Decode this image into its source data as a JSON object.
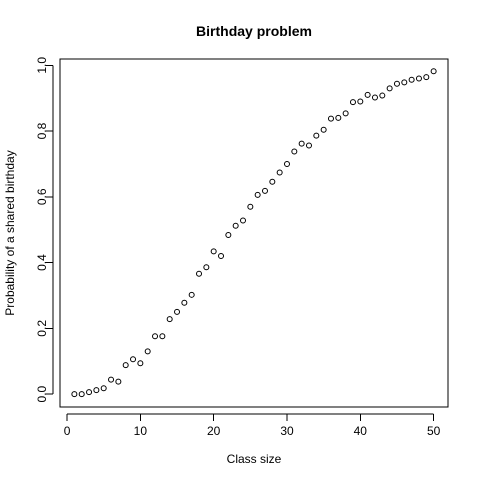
{
  "chart_data": {
    "type": "scatter",
    "title": "Birthday problem",
    "xlabel": "Class size",
    "ylabel": "Probability of a shared birthday",
    "xlim": [
      -0.96,
      51.96
    ],
    "ylim": [
      -0.0392,
      1.0192
    ],
    "xticks": [
      0,
      10,
      20,
      30,
      40,
      50
    ],
    "xtick_labels": [
      "0",
      "10",
      "20",
      "30",
      "40",
      "50"
    ],
    "yticks": [
      0.0,
      0.2,
      0.4,
      0.6,
      0.8,
      1.0
    ],
    "ytick_labels": [
      "0.0",
      "0.2",
      "0.4",
      "0.6",
      "0.8",
      "1.0"
    ],
    "grid": false,
    "legend": "none",
    "marker": "open-circle",
    "series": [
      {
        "x": [
          1,
          2,
          3,
          4,
          5,
          6,
          7,
          8,
          9,
          10,
          11,
          12,
          13,
          14,
          15,
          16,
          17,
          18,
          19,
          20,
          21,
          22,
          23,
          24,
          25,
          26,
          27,
          28,
          29,
          30,
          31,
          32,
          33,
          34,
          35,
          36,
          37,
          38,
          39,
          40,
          41,
          42,
          43,
          44,
          45,
          46,
          47,
          48,
          49,
          50
        ],
        "y": [
          0.0,
          0.0,
          0.006,
          0.012,
          0.018,
          0.044,
          0.038,
          0.088,
          0.106,
          0.094,
          0.13,
          0.176,
          0.176,
          0.228,
          0.25,
          0.278,
          0.302,
          0.366,
          0.386,
          0.434,
          0.42,
          0.484,
          0.512,
          0.528,
          0.57,
          0.606,
          0.618,
          0.646,
          0.674,
          0.7,
          0.738,
          0.762,
          0.756,
          0.786,
          0.804,
          0.838,
          0.84,
          0.854,
          0.888,
          0.89,
          0.91,
          0.902,
          0.908,
          0.93,
          0.944,
          0.948,
          0.956,
          0.96,
          0.964,
          0.982
        ]
      }
    ]
  }
}
